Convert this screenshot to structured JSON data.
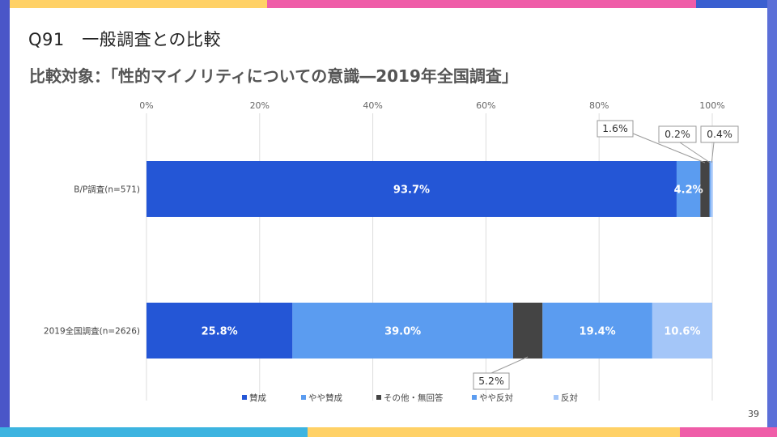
{
  "slide": {
    "title": "Q91　一般調査との比較",
    "subtitle": "比較対象：「性的マイノリティについての意識―2019年全国調査」",
    "page_number": "39"
  },
  "colors": {
    "賛成": "#2456d6",
    "やや賛成": "#5b9cf0",
    "その他・無回答": "#444444",
    "やや反対": "#5b9cf0",
    "反対": "#a4c6f8",
    "grid": "#dddddd",
    "axis_text": "#666666"
  },
  "chart_data": {
    "type": "bar",
    "orientation": "horizontal",
    "stacked": true,
    "percent": true,
    "xlim": [
      0,
      100
    ],
    "x_ticks": [
      "0%",
      "20%",
      "40%",
      "60%",
      "80%",
      "100%"
    ],
    "categories": [
      "B/P調査(n=571)",
      "2019全国調査(n=2626)"
    ],
    "series": [
      {
        "name": "賛成",
        "values": [
          93.7,
          25.8
        ],
        "labels": [
          "93.7%",
          "25.8%"
        ]
      },
      {
        "name": "やや賛成",
        "values": [
          4.2,
          39.0
        ],
        "labels": [
          "4.2%",
          "39.0%"
        ]
      },
      {
        "name": "その他・無回答",
        "values": [
          1.6,
          5.2
        ],
        "labels": [
          "1.6%",
          "5.2%"
        ]
      },
      {
        "name": "やや反対",
        "values": [
          0.2,
          19.4
        ],
        "labels": [
          "0.2%",
          "19.4%"
        ]
      },
      {
        "name": "反対",
        "values": [
          0.4,
          10.6
        ],
        "labels": [
          "0.4%",
          "10.6%"
        ]
      }
    ],
    "legend_position": "bottom",
    "grid": true
  }
}
